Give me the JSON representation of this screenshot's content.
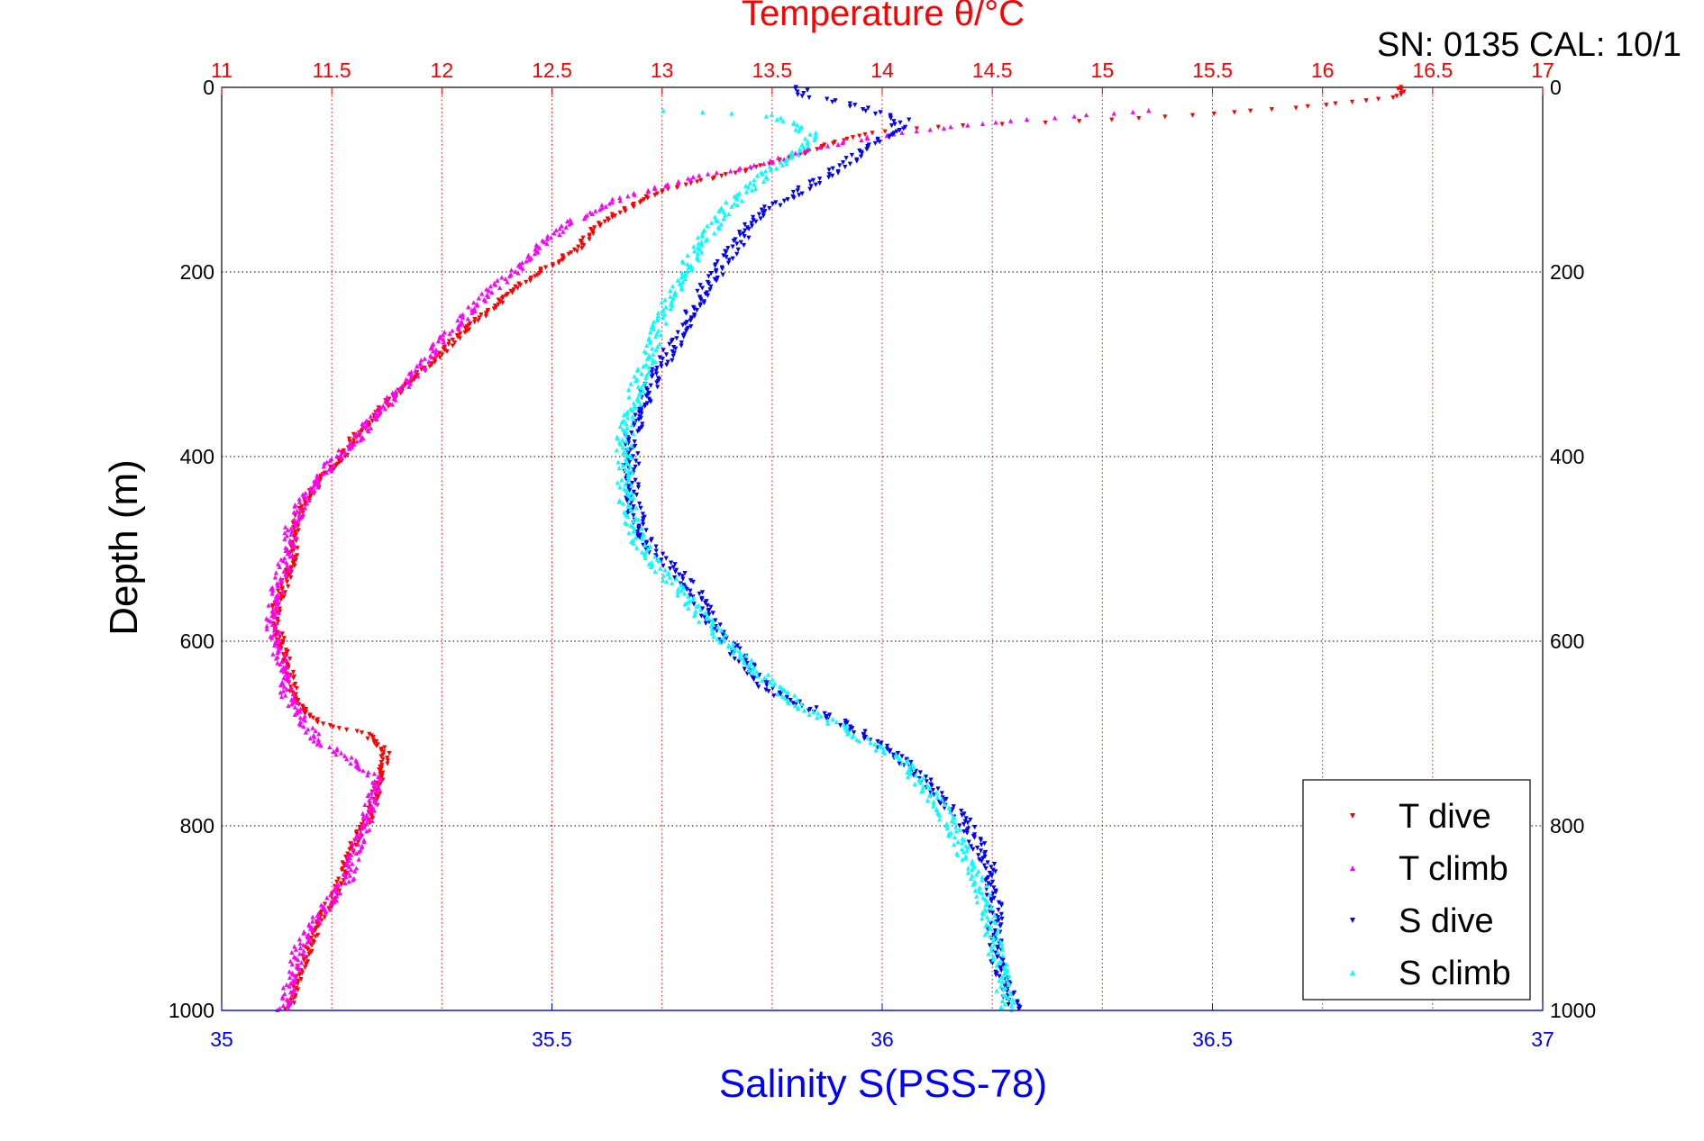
{
  "chart_data": {
    "type": "scatter",
    "title": "Temperature θ/°C",
    "serial_label": "SN: 0135  CAL: 10/1",
    "top_axis": {
      "label": "Temperature θ/°C",
      "range": [
        11,
        17
      ],
      "ticks": [
        "11",
        "11.5",
        "12",
        "12.5",
        "13",
        "13.5",
        "14",
        "14.5",
        "15",
        "15.5",
        "16",
        "16.5",
        "17"
      ],
      "color": "#ff0000"
    },
    "bottom_axis": {
      "label": "Salinity S(PSS-78)",
      "range": [
        35,
        37
      ],
      "ticks": [
        "35",
        "35.5",
        "36",
        "36.5",
        "37"
      ],
      "color": "#0000ff"
    },
    "y_axis": {
      "label": "Depth (m)",
      "range": [
        0,
        1000
      ],
      "reversed": true,
      "ticks": [
        "0",
        "200",
        "400",
        "600",
        "800",
        "1000"
      ]
    },
    "grid": true,
    "legend_position": "bottom-right",
    "series": [
      {
        "name": "T dive",
        "axis": "temperature",
        "color": "#ff0000",
        "marker": "triangle-down",
        "profile": [
          [
            16.35,
            0
          ],
          [
            16.35,
            10
          ],
          [
            15.9,
            22
          ],
          [
            15.3,
            32
          ],
          [
            14.8,
            38
          ],
          [
            14.3,
            42
          ],
          [
            14.0,
            48
          ],
          [
            13.8,
            58
          ],
          [
            13.6,
            75
          ],
          [
            13.35,
            92
          ],
          [
            13.0,
            112
          ],
          [
            12.85,
            130
          ],
          [
            12.7,
            150
          ],
          [
            12.62,
            175
          ],
          [
            12.5,
            192
          ],
          [
            12.35,
            215
          ],
          [
            12.2,
            245
          ],
          [
            12.05,
            275
          ],
          [
            11.95,
            300
          ],
          [
            11.8,
            330
          ],
          [
            11.7,
            355
          ],
          [
            11.6,
            380
          ],
          [
            11.55,
            400
          ],
          [
            11.45,
            425
          ],
          [
            11.38,
            450
          ],
          [
            11.33,
            475
          ],
          [
            11.33,
            500
          ],
          [
            11.3,
            530
          ],
          [
            11.25,
            560
          ],
          [
            11.25,
            580
          ],
          [
            11.27,
            600
          ],
          [
            11.3,
            620
          ],
          [
            11.32,
            650
          ],
          [
            11.35,
            670
          ],
          [
            11.45,
            690
          ],
          [
            11.65,
            700
          ],
          [
            11.75,
            720
          ],
          [
            11.72,
            745
          ],
          [
            11.7,
            765
          ],
          [
            11.68,
            790
          ],
          [
            11.62,
            810
          ],
          [
            11.58,
            830
          ],
          [
            11.55,
            855
          ],
          [
            11.5,
            880
          ],
          [
            11.45,
            900
          ],
          [
            11.4,
            930
          ],
          [
            11.35,
            960
          ],
          [
            11.3,
            1000
          ]
        ],
        "jitter": 0.02
      },
      {
        "name": "T climb",
        "axis": "temperature",
        "color": "#ff00ff",
        "marker": "triangle-up",
        "profile": [
          [
            15.2,
            25
          ],
          [
            14.5,
            38
          ],
          [
            14.0,
            52
          ],
          [
            13.7,
            65
          ],
          [
            13.5,
            80
          ],
          [
            13.2,
            95
          ],
          [
            12.95,
            110
          ],
          [
            12.75,
            125
          ],
          [
            12.6,
            145
          ],
          [
            12.48,
            165
          ],
          [
            12.4,
            185
          ],
          [
            12.3,
            205
          ],
          [
            12.2,
            225
          ],
          [
            12.1,
            250
          ],
          [
            12.0,
            275
          ],
          [
            11.9,
            305
          ],
          [
            11.78,
            335
          ],
          [
            11.68,
            360
          ],
          [
            11.6,
            385
          ],
          [
            11.5,
            405
          ],
          [
            11.45,
            425
          ],
          [
            11.38,
            445
          ],
          [
            11.32,
            470
          ],
          [
            11.3,
            500
          ],
          [
            11.28,
            520
          ],
          [
            11.25,
            545
          ],
          [
            11.23,
            575
          ],
          [
            11.24,
            600
          ],
          [
            11.28,
            630
          ],
          [
            11.3,
            660
          ],
          [
            11.38,
            690
          ],
          [
            11.45,
            710
          ],
          [
            11.6,
            730
          ],
          [
            11.7,
            750
          ],
          [
            11.68,
            775
          ],
          [
            11.65,
            800
          ],
          [
            11.6,
            830
          ],
          [
            11.58,
            855
          ],
          [
            11.5,
            880
          ],
          [
            11.42,
            905
          ],
          [
            11.35,
            935
          ],
          [
            11.32,
            965
          ],
          [
            11.28,
            1000
          ]
        ],
        "jitter": 0.03
      },
      {
        "name": "S dive",
        "axis": "salinity",
        "color": "#0000ff",
        "marker": "triangle-down",
        "profile": [
          [
            35.88,
            0
          ],
          [
            35.88,
            8
          ],
          [
            35.97,
            22
          ],
          [
            36.03,
            35
          ],
          [
            36.02,
            50
          ],
          [
            35.97,
            70
          ],
          [
            35.93,
            90
          ],
          [
            35.88,
            110
          ],
          [
            35.83,
            130
          ],
          [
            35.8,
            150
          ],
          [
            35.78,
            170
          ],
          [
            35.76,
            190
          ],
          [
            35.74,
            210
          ],
          [
            35.72,
            235
          ],
          [
            35.7,
            260
          ],
          [
            35.68,
            285
          ],
          [
            35.66,
            310
          ],
          [
            35.64,
            335
          ],
          [
            35.63,
            360
          ],
          [
            35.62,
            385
          ],
          [
            35.62,
            410
          ],
          [
            35.62,
            440
          ],
          [
            35.63,
            470
          ],
          [
            35.65,
            500
          ],
          [
            35.69,
            525
          ],
          [
            35.72,
            550
          ],
          [
            35.74,
            580
          ],
          [
            35.77,
            605
          ],
          [
            35.8,
            630
          ],
          [
            35.83,
            655
          ],
          [
            35.9,
            675
          ],
          [
            35.96,
            695
          ],
          [
            36.0,
            715
          ],
          [
            36.05,
            740
          ],
          [
            36.08,
            765
          ],
          [
            36.12,
            790
          ],
          [
            36.14,
            815
          ],
          [
            36.16,
            840
          ],
          [
            36.17,
            870
          ],
          [
            36.17,
            900
          ],
          [
            36.17,
            930
          ],
          [
            36.18,
            960
          ],
          [
            36.2,
            1000
          ]
        ],
        "jitter": 0.012
      },
      {
        "name": "S climb",
        "axis": "salinity",
        "color": "#00ffff",
        "marker": "triangle-up",
        "profile": [
          [
            35.68,
            25
          ],
          [
            35.83,
            30
          ],
          [
            35.9,
            52
          ],
          [
            35.87,
            72
          ],
          [
            35.82,
            95
          ],
          [
            35.78,
            120
          ],
          [
            35.75,
            145
          ],
          [
            35.72,
            175
          ],
          [
            35.7,
            200
          ],
          [
            35.68,
            230
          ],
          [
            35.66,
            260
          ],
          [
            35.65,
            290
          ],
          [
            35.63,
            320
          ],
          [
            35.62,
            350
          ],
          [
            35.61,
            380
          ],
          [
            35.61,
            410
          ],
          [
            35.61,
            440
          ],
          [
            35.62,
            465
          ],
          [
            35.63,
            490
          ],
          [
            35.66,
            520
          ],
          [
            35.7,
            550
          ],
          [
            35.73,
            575
          ],
          [
            35.76,
            600
          ],
          [
            35.8,
            625
          ],
          [
            35.84,
            650
          ],
          [
            35.88,
            672
          ],
          [
            35.93,
            690
          ],
          [
            35.98,
            710
          ],
          [
            36.03,
            730
          ],
          [
            36.06,
            755
          ],
          [
            36.09,
            780
          ],
          [
            36.11,
            810
          ],
          [
            36.13,
            840
          ],
          [
            36.15,
            870
          ],
          [
            36.16,
            900
          ],
          [
            36.17,
            930
          ],
          [
            36.18,
            960
          ],
          [
            36.19,
            1000
          ]
        ],
        "jitter": 0.012
      }
    ]
  }
}
